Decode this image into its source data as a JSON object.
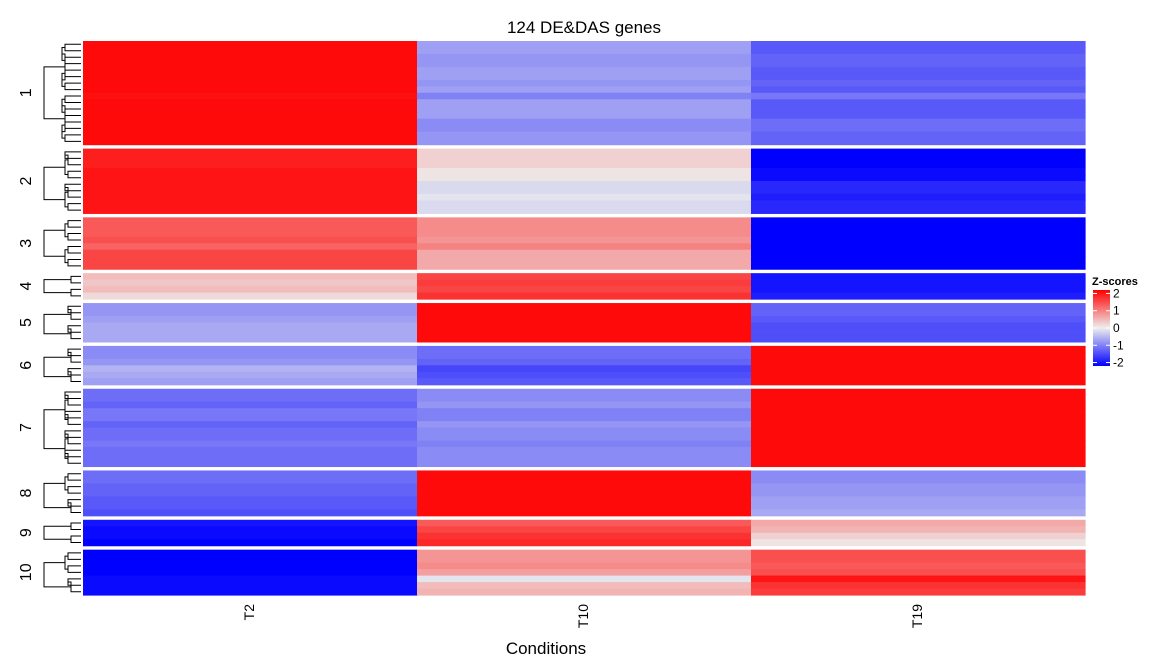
{
  "chart_data": {
    "type": "heatmap",
    "title": "124 DE&DAS genes",
    "xlabel": "Conditions",
    "columns": [
      "T2",
      "T10",
      "T19"
    ],
    "legend": {
      "title": "Z-scores",
      "ticks": [
        "2",
        "1",
        "0",
        "-1",
        "-2"
      ],
      "range": [
        -2.2,
        2.2
      ],
      "colors": {
        "low": "#0000ff",
        "mid": "#eeeeee",
        "high": "#ff0000"
      },
      "placement": "right"
    },
    "clusters": [
      {
        "label": "1",
        "rows": [
          [
            1.15,
            -0.4,
            -0.75
          ],
          [
            1.15,
            -0.4,
            -0.75
          ],
          [
            1.15,
            -0.45,
            -0.7
          ],
          [
            1.15,
            -0.45,
            -0.7
          ],
          [
            1.15,
            -0.4,
            -0.75
          ],
          [
            1.15,
            -0.4,
            -0.75
          ],
          [
            1.15,
            -0.45,
            -0.7
          ],
          [
            1.15,
            -0.4,
            -0.75
          ],
          [
            1.12,
            -0.55,
            -0.6
          ],
          [
            1.15,
            -0.4,
            -0.75
          ],
          [
            1.15,
            -0.4,
            -0.75
          ],
          [
            1.15,
            -0.4,
            -0.75
          ],
          [
            1.15,
            -0.5,
            -0.65
          ],
          [
            1.15,
            -0.5,
            -0.65
          ],
          [
            1.15,
            -0.45,
            -0.7
          ],
          [
            1.15,
            -0.45,
            -0.7
          ]
        ]
      },
      {
        "label": "2",
        "rows": [
          [
            1.05,
            0.15,
            -1.2
          ],
          [
            1.05,
            0.15,
            -1.2
          ],
          [
            1.05,
            0.15,
            -1.2
          ],
          [
            1.1,
            0.05,
            -1.15
          ],
          [
            1.1,
            0.05,
            -1.15
          ],
          [
            1.1,
            -0.1,
            -1.0
          ],
          [
            1.1,
            -0.1,
            -1.0
          ],
          [
            1.1,
            -0.05,
            -1.05
          ],
          [
            1.1,
            -0.1,
            -1.0
          ],
          [
            1.1,
            -0.1,
            -1.0
          ]
        ]
      },
      {
        "label": "3",
        "rows": [
          [
            0.75,
            0.5,
            -1.25
          ],
          [
            0.75,
            0.5,
            -1.25
          ],
          [
            0.75,
            0.5,
            -1.25
          ],
          [
            0.8,
            0.45,
            -1.25
          ],
          [
            0.7,
            0.55,
            -1.25
          ],
          [
            0.85,
            0.35,
            -1.2
          ],
          [
            0.85,
            0.35,
            -1.2
          ],
          [
            0.85,
            0.35,
            -1.2
          ]
        ]
      },
      {
        "label": "4",
        "rows": [
          [
            0.25,
            0.85,
            -1.1
          ],
          [
            0.2,
            0.9,
            -1.1
          ],
          [
            0.25,
            0.85,
            -1.1
          ],
          [
            0.1,
            0.95,
            -1.05
          ]
        ]
      },
      {
        "label": "5",
        "rows": [
          [
            -0.45,
            1.15,
            -0.7
          ],
          [
            -0.45,
            1.15,
            -0.7
          ],
          [
            -0.4,
            1.15,
            -0.75
          ],
          [
            -0.35,
            1.15,
            -0.8
          ],
          [
            -0.35,
            1.15,
            -0.8
          ],
          [
            -0.35,
            1.15,
            -0.8
          ]
        ]
      },
      {
        "label": "6",
        "rows": [
          [
            -0.5,
            -0.65,
            1.15
          ],
          [
            -0.5,
            -0.65,
            1.15
          ],
          [
            -0.45,
            -0.7,
            1.15
          ],
          [
            -0.3,
            -0.85,
            1.15
          ],
          [
            -0.35,
            -0.8,
            1.15
          ],
          [
            -0.4,
            -0.75,
            1.15
          ]
        ]
      },
      {
        "label": "7",
        "rows": [
          [
            -0.65,
            -0.5,
            1.15
          ],
          [
            -0.65,
            -0.5,
            1.15
          ],
          [
            -0.7,
            -0.45,
            1.15
          ],
          [
            -0.6,
            -0.55,
            1.15
          ],
          [
            -0.6,
            -0.55,
            1.15
          ],
          [
            -0.7,
            -0.45,
            1.15
          ],
          [
            -0.65,
            -0.5,
            1.15
          ],
          [
            -0.65,
            -0.5,
            1.15
          ],
          [
            -0.6,
            -0.55,
            1.15
          ],
          [
            -0.65,
            -0.5,
            1.15
          ],
          [
            -0.65,
            -0.5,
            1.15
          ],
          [
            -0.65,
            -0.5,
            1.15
          ]
        ]
      },
      {
        "label": "8",
        "rows": [
          [
            -0.65,
            1.15,
            -0.5
          ],
          [
            -0.65,
            1.15,
            -0.5
          ],
          [
            -0.7,
            1.15,
            -0.45
          ],
          [
            -0.7,
            1.15,
            -0.45
          ],
          [
            -0.75,
            1.15,
            -0.4
          ],
          [
            -0.75,
            1.15,
            -0.4
          ],
          [
            -0.8,
            1.15,
            -0.35
          ]
        ]
      },
      {
        "label": "9",
        "rows": [
          [
            -1.1,
            0.75,
            0.35
          ],
          [
            -1.15,
            0.85,
            0.3
          ],
          [
            -1.15,
            0.95,
            0.15
          ],
          [
            -1.2,
            1.0,
            0.05
          ]
        ]
      },
      {
        "label": "10",
        "rows": [
          [
            -1.25,
            0.45,
            0.8
          ],
          [
            -1.25,
            0.45,
            0.8
          ],
          [
            -1.2,
            0.5,
            0.75
          ],
          [
            -1.2,
            0.4,
            0.8
          ],
          [
            -1.15,
            -0.05,
            1.1
          ],
          [
            -1.15,
            0.25,
            0.95
          ],
          [
            -1.15,
            0.3,
            0.9
          ]
        ]
      }
    ]
  }
}
